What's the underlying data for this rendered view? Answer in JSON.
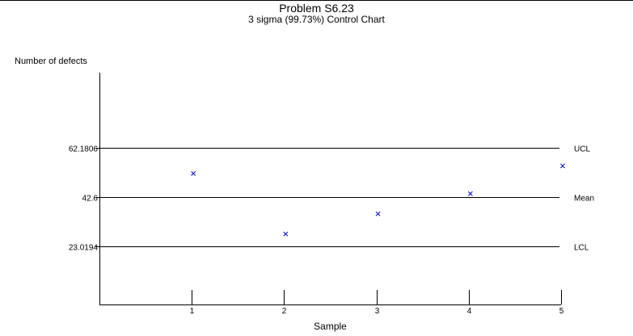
{
  "header": {
    "title": "Problem S6.23",
    "subtitle": "3 sigma (99.73%) Control Chart"
  },
  "chart_data": {
    "type": "scatter",
    "title": "Problem S6.23",
    "subtitle": "3 sigma (99.73%) Control Chart",
    "xlabel": "Sample",
    "ylabel": "Number of defects",
    "x": [
      1,
      2,
      3,
      4,
      5
    ],
    "xticks": [
      "1",
      "2",
      "3",
      "4",
      "5"
    ],
    "series": [
      {
        "values": [
          52,
          28,
          36,
          44,
          55
        ],
        "marker": "x",
        "color": "#0000cc"
      }
    ],
    "control_lines": [
      {
        "label": "UCL",
        "value": 62.1806,
        "tick_label": "62.1806"
      },
      {
        "label": "Mean",
        "value": 42.6,
        "tick_label": "42.6"
      },
      {
        "label": "LCL",
        "value": 23.0194,
        "tick_label": "23.0194"
      }
    ],
    "xlim": [
      0,
      5
    ],
    "ylim": [
      0,
      92
    ],
    "grid": false,
    "legend": "none",
    "axis_color": "#000000",
    "marker_color": "#0000cc"
  }
}
